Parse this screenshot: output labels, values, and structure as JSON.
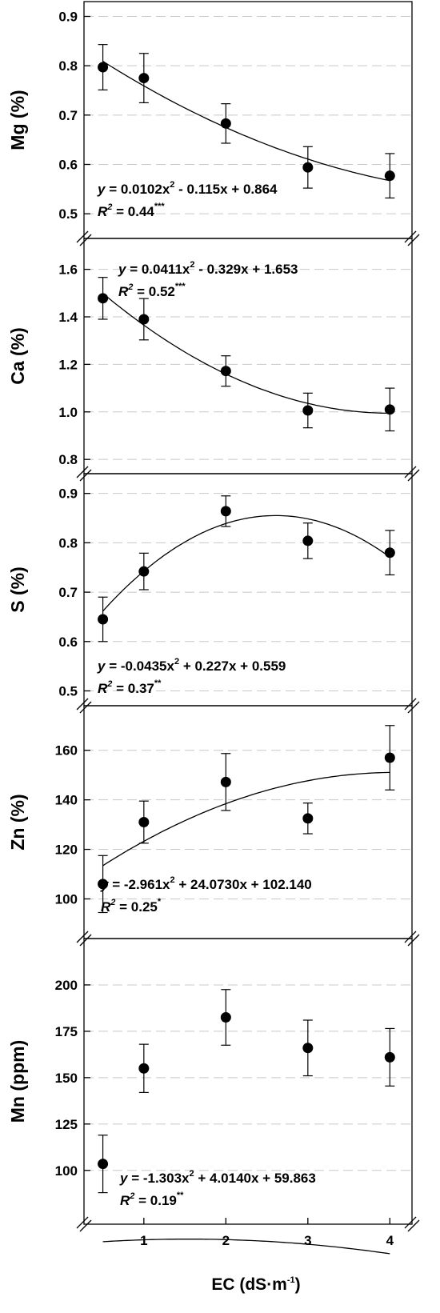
{
  "chart_data": [
    {
      "type": "scatter",
      "ylabel": "Mg (%)",
      "ylim": [
        0.45,
        0.93
      ],
      "yticks": [
        0.5,
        0.6,
        0.7,
        0.8,
        0.9
      ],
      "tick_labels": [
        "0.5",
        "0.6",
        "0.7",
        "0.8",
        "0.9"
      ],
      "x": [
        0.5,
        1,
        2,
        3,
        4
      ],
      "y": [
        0.797,
        0.775,
        0.683,
        0.594,
        0.577
      ],
      "err": [
        0.046,
        0.05,
        0.04,
        0.042,
        0.045
      ],
      "fit": [
        0.0102,
        -0.115,
        0.864
      ],
      "equation": {
        "y": "y",
        "body": " = 0.0102x",
        "sup": "2",
        "rest": " - 0.115x + 0.864"
      },
      "r2": {
        "r": "R",
        "sup": "2",
        "value": " = 0.44",
        "sig": "***"
      }
    },
    {
      "type": "scatter",
      "ylabel": "Ca (%)",
      "ylim": [
        0.74,
        1.73
      ],
      "yticks": [
        0.8,
        1.0,
        1.2,
        1.4,
        1.6
      ],
      "tick_labels": [
        "0.8",
        "1.0",
        "1.2",
        "1.4",
        "1.6"
      ],
      "x": [
        0.5,
        1,
        2,
        3,
        4
      ],
      "y": [
        1.478,
        1.39,
        1.172,
        1.006,
        1.01
      ],
      "err": [
        0.088,
        0.087,
        0.064,
        0.073,
        0.09
      ],
      "fit": [
        0.0411,
        -0.329,
        1.653
      ],
      "equation": {
        "y": "y",
        "body": " = 0.0411x",
        "sup": "2",
        "rest": " - 0.329x + 1.653"
      },
      "r2": {
        "r": "R",
        "sup": "2",
        "value": " = 0.52",
        "sig": "***"
      }
    },
    {
      "type": "scatter",
      "ylabel": "S (%)",
      "ylim": [
        0.47,
        0.94
      ],
      "yticks": [
        0.5,
        0.6,
        0.7,
        0.8,
        0.9
      ],
      "tick_labels": [
        "0.5",
        "0.6",
        "0.7",
        "0.8",
        "0.9"
      ],
      "x": [
        0.5,
        1,
        2,
        3,
        4
      ],
      "y": [
        0.645,
        0.742,
        0.864,
        0.804,
        0.78
      ],
      "err": [
        0.045,
        0.037,
        0.031,
        0.036,
        0.045
      ],
      "fit": [
        -0.0435,
        0.227,
        0.559
      ],
      "equation": {
        "y": "y",
        "body": " = -0.0435x",
        "sup": "2",
        "rest": " + 0.227x + 0.559"
      },
      "r2": {
        "r": "R",
        "sup": "2",
        "value": " = 0.37",
        "sig": "**"
      }
    },
    {
      "type": "scatter",
      "ylabel": "Zn (%)",
      "ylim": [
        84,
        178
      ],
      "yticks": [
        100,
        120,
        140,
        160
      ],
      "tick_labels": [
        "100",
        "120",
        "140",
        "160"
      ],
      "x": [
        0.5,
        1,
        2,
        3,
        4
      ],
      "y": [
        106,
        131,
        147.2,
        132.5,
        157
      ],
      "err": [
        11.5,
        8.5,
        11.5,
        6.2,
        13
      ],
      "fit": [
        -2.961,
        24.073,
        102.14
      ],
      "equation": {
        "y": "y",
        "body": " = -2.961x",
        "sup": "2",
        "rest": " + 24.0730x + 102.140"
      },
      "r2": {
        "r": "R",
        "sup": "2",
        "value": " = 0.25",
        "sig": "*"
      }
    },
    {
      "type": "scatter",
      "ylabel": "Mn (ppm)",
      "ylim": [
        71,
        225
      ],
      "yticks": [
        100,
        125,
        150,
        175,
        200
      ],
      "tick_labels": [
        "100",
        "125",
        "150",
        "175",
        "200"
      ],
      "x": [
        0.5,
        1,
        2,
        3,
        4
      ],
      "y": [
        103.5,
        155,
        182.5,
        166,
        161
      ],
      "err": [
        15.5,
        13,
        15,
        15,
        15.5
      ],
      "fit": [
        -1.303,
        4.014,
        59.863
      ],
      "equation": {
        "y": "y",
        "body": " = -1.303x",
        "sup": "2",
        "rest": " + 4.0140x + 59.863"
      },
      "r2": {
        "r": "R",
        "sup": "2",
        "value": " = 0.19",
        "sig": "**"
      }
    }
  ],
  "x_axis": {
    "xlim": [
      0.27,
      4.27
    ],
    "xticks": [
      1,
      2,
      3,
      4
    ],
    "tick_labels": [
      "1",
      "2",
      "3",
      "4"
    ],
    "label": {
      "main": "EC (dS·m",
      "sup": "-1",
      "end": ")"
    }
  }
}
